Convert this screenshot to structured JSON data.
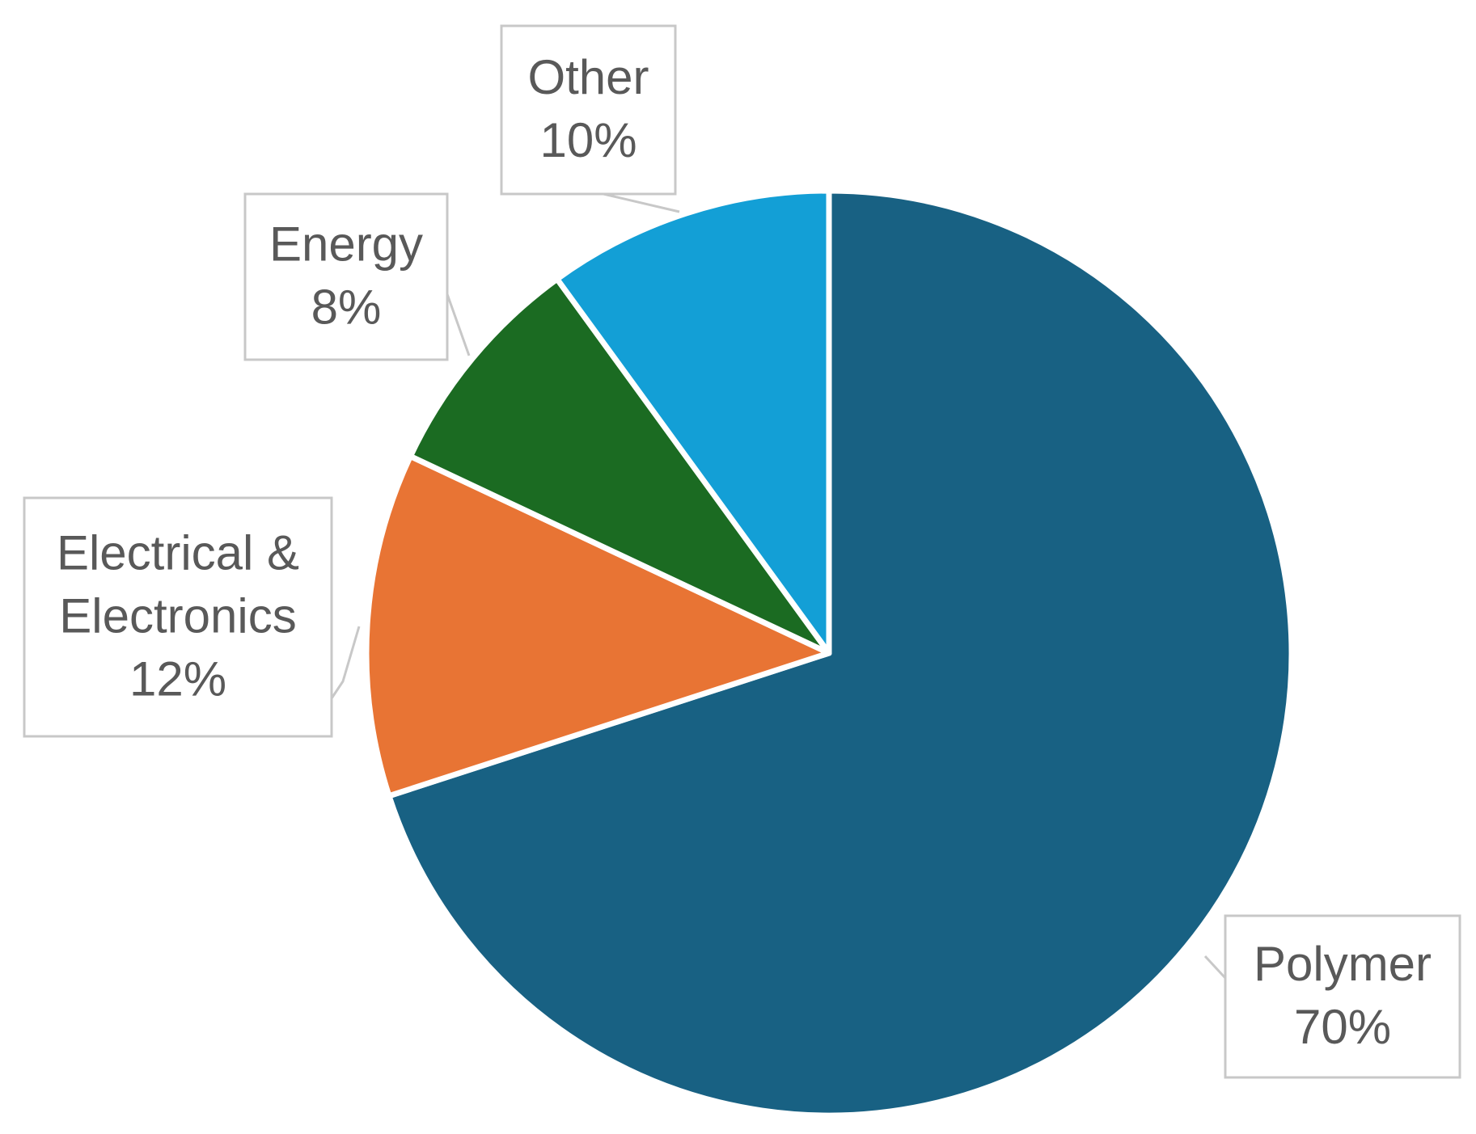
{
  "chart_data": {
    "type": "pie",
    "title": "",
    "start_angle_deg": 0,
    "direction": "clockwise",
    "slices": [
      {
        "name": "Polymer",
        "value": 70,
        "label_lines": [
          "Polymer"
        ],
        "value_label": "70%",
        "color": "#186183"
      },
      {
        "name": "Electrical & Electronics",
        "value": 12,
        "label_lines": [
          "Electrical &",
          "Electronics"
        ],
        "value_label": "12%",
        "color": "#e87434"
      },
      {
        "name": "Energy",
        "value": 8,
        "label_lines": [
          "Energy"
        ],
        "value_label": "8%",
        "color": "#1b6b22"
      },
      {
        "name": "Other",
        "value": 10,
        "label_lines": [
          "Other"
        ],
        "value_label": "10%",
        "color": "#139fd6"
      }
    ]
  }
}
